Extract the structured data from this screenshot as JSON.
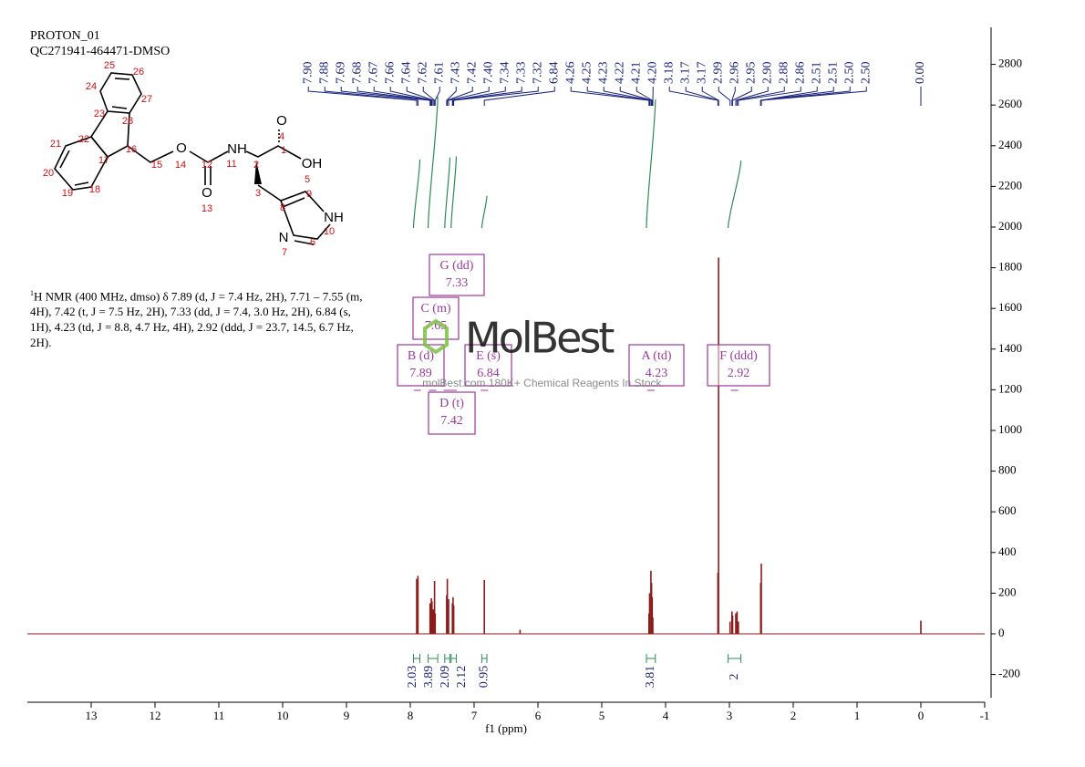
{
  "header": {
    "title": "PROTON_01",
    "sample": "QC271941-464471-DMSO"
  },
  "structure": {
    "labels": [
      "25",
      "26",
      "24",
      "27",
      "23",
      "28",
      "16",
      "21",
      "22",
      "17",
      "20",
      "19",
      "18",
      "15",
      "14",
      "O",
      "12",
      "NH",
      "11",
      "2",
      "O",
      "4",
      "1",
      "OH",
      "5",
      "3",
      "O",
      "13",
      "8",
      "9",
      "NH",
      "10",
      "N",
      "6",
      "7"
    ]
  },
  "nmr_text": {
    "nucleus": "1",
    "text": "H NMR (400 MHz, dmso) δ 7.89 (d, J = 7.4 Hz, 2H), 7.71 – 7.55 (m, 4H), 7.42 (t, J = 7.5 Hz, 2H), 7.33 (dd, J = 7.4, 3.0 Hz, 2H), 6.84 (s, 1H), 4.23 (td, J = 8.8, 4.7 Hz, 4H), 2.92 (ddd, J = 23.7, 14.5, 6.7 Hz, 2H)."
  },
  "watermark": {
    "brand": "MolBest",
    "tagline": "molBest.com 180K+ Chemical Reagents In Stock."
  },
  "chart_data": {
    "type": "nmr",
    "xlabel": "f1 (ppm)",
    "xlim": [
      14,
      -1
    ],
    "xticks": [
      13,
      12,
      11,
      10,
      9,
      8,
      7,
      6,
      5,
      4,
      3,
      2,
      1,
      0,
      -1
    ],
    "ylim": [
      -314,
      2982
    ],
    "yticks": [
      -200,
      0,
      200,
      400,
      600,
      800,
      1000,
      1200,
      1400,
      1600,
      1800,
      2000,
      2200,
      2400,
      2600,
      2800
    ],
    "color": "#8b1a1a",
    "x": [
      7.9,
      7.88,
      7.69,
      7.67,
      7.66,
      7.64,
      7.62,
      7.61,
      7.43,
      7.42,
      7.4,
      7.34,
      7.33,
      7.32,
      6.84,
      6.28,
      4.26,
      4.25,
      4.23,
      4.22,
      4.21,
      4.2,
      3.18,
      3.17,
      2.99,
      2.96,
      2.95,
      2.9,
      2.88,
      2.86,
      2.51,
      2.5,
      0.0
    ],
    "values": [
      270,
      285,
      150,
      175,
      160,
      120,
      260,
      100,
      190,
      270,
      170,
      150,
      180,
      140,
      265,
      20,
      100,
      200,
      310,
      250,
      180,
      80,
      300,
      1850,
      60,
      110,
      90,
      100,
      110,
      60,
      250,
      345,
      65
    ],
    "peak_labels": [
      {
        "value": 7.9,
        "label": "7.90"
      },
      7.88,
      7.69,
      7.68,
      7.67,
      7.66,
      7.64,
      7.62,
      7.61,
      7.43,
      7.42,
      {
        "value": 7.4,
        "label": "7.40"
      },
      7.34,
      7.33,
      7.32,
      6.84,
      4.26,
      4.25,
      4.23,
      4.22,
      4.21,
      {
        "value": 4.2,
        "label": "4.20"
      },
      3.18,
      3.17,
      3.17,
      2.99,
      2.96,
      2.95,
      {
        "value": 2.9,
        "label": "2.90"
      },
      2.88,
      2.86,
      2.51,
      2.51,
      {
        "value": 2.5,
        "label": "2.50"
      },
      {
        "value": 2.5,
        "label": "2.50"
      },
      {
        "value": 0,
        "label": "0.00"
      }
    ],
    "integrals": [
      {
        "from": 7.95,
        "to": 7.85,
        "value": 2.03
      },
      {
        "from": 7.72,
        "to": 7.57,
        "value": 3.89
      },
      {
        "from": 7.46,
        "to": 7.38,
        "value": 2.09
      },
      {
        "from": 7.36,
        "to": 7.28,
        "value": 2.12
      },
      {
        "from": 6.88,
        "to": 6.8,
        "value": 0.95
      },
      {
        "from": 4.3,
        "to": 4.16,
        "value": 3.81
      },
      {
        "from": 3.02,
        "to": 2.82,
        "value": 2.0
      }
    ],
    "multiplets": [
      {
        "label": "A (td)",
        "shift": 4.23
      },
      {
        "label": "B (d)",
        "shift": 7.89
      },
      {
        "label": "C (m)",
        "shift": 7.65
      },
      {
        "label": "D (t)",
        "shift": 7.42
      },
      {
        "label": "E (s)",
        "shift": 6.84
      },
      {
        "label": "F (ddd)",
        "shift": 2.92
      },
      {
        "label": "G (dd)",
        "shift": 7.33
      }
    ]
  }
}
